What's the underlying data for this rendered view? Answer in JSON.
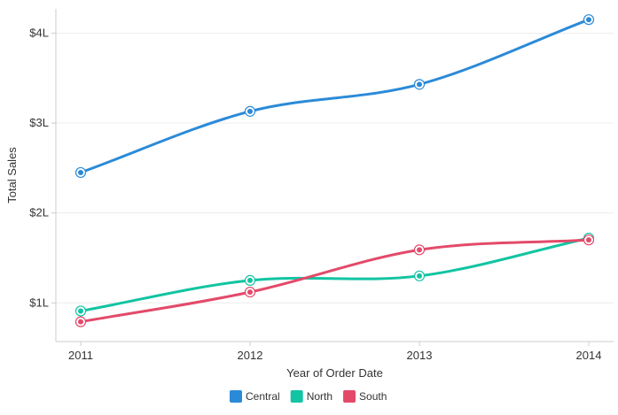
{
  "chart_data": {
    "type": "line",
    "title": "",
    "xlabel": "Year of Order Date",
    "ylabel": "Total Sales",
    "categories": [
      "2011",
      "2012",
      "2013",
      "2014"
    ],
    "y_ticks": [
      {
        "value": 100000,
        "label": "$1L"
      },
      {
        "value": 200000,
        "label": "$2L"
      },
      {
        "value": 300000,
        "label": "$3L"
      },
      {
        "value": 400000,
        "label": "$4L"
      }
    ],
    "ylim": [
      57000,
      427000
    ],
    "grid": true,
    "legend_position": "bottom-center",
    "curve": "smooth",
    "series": [
      {
        "name": "Central",
        "color": "#2b8ad8",
        "values": [
          245000,
          313000,
          343000,
          415000
        ]
      },
      {
        "name": "North",
        "color": "#12c4a2",
        "values": [
          91000,
          125000,
          130000,
          172000
        ]
      },
      {
        "name": "South",
        "color": "#e34a6a",
        "values": [
          79000,
          112000,
          159000,
          170000
        ]
      }
    ]
  }
}
